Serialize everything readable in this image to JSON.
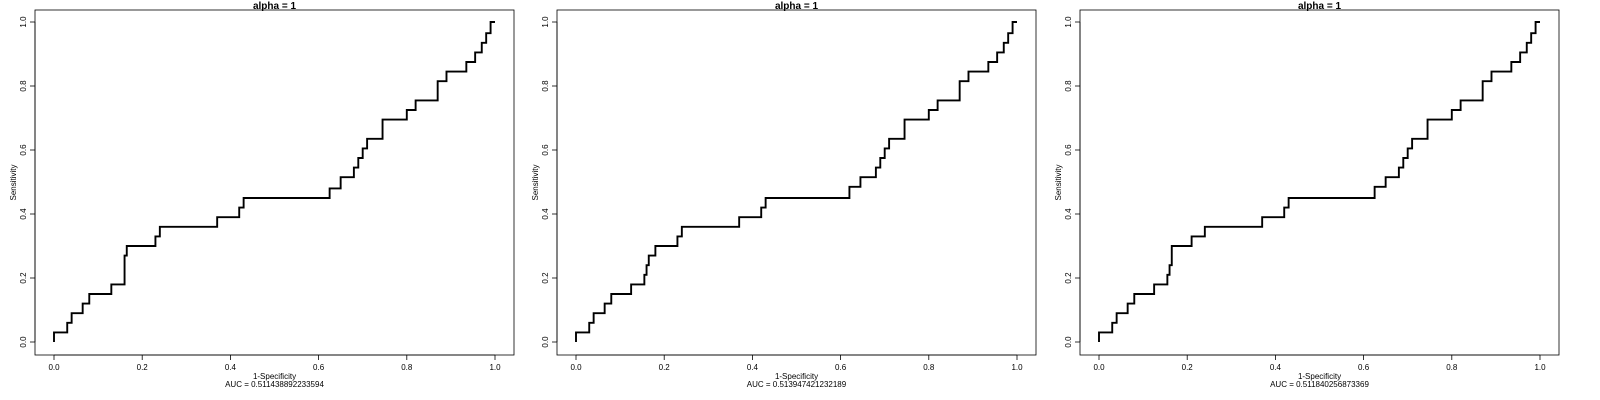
{
  "chart_data": [
    {
      "type": "line",
      "title": "alpha =  1",
      "xlabel": "1-Specificity",
      "ylabel": "Sensitivity",
      "auc_text": "AUC =  0.511438892233594",
      "xlim": [
        0,
        1
      ],
      "ylim": [
        0,
        1
      ],
      "x_ticks": [
        "0.0",
        "0.2",
        "0.4",
        "0.6",
        "0.8",
        "1.0"
      ],
      "y_ticks": [
        "0.0",
        "0.2",
        "0.4",
        "0.6",
        "0.8",
        "1.0"
      ],
      "grid": false,
      "legend": "none",
      "line_color": "#000000",
      "series": [
        {
          "x": [
            0.0,
            0.0,
            0.03,
            0.03,
            0.04,
            0.04,
            0.065,
            0.065,
            0.08,
            0.08,
            0.13,
            0.13,
            0.16,
            0.16,
            0.16,
            0.165,
            0.165,
            0.18,
            0.18,
            0.23,
            0.23,
            0.24,
            0.24,
            0.37,
            0.37,
            0.42,
            0.42,
            0.43,
            0.43,
            0.625,
            0.625,
            0.65,
            0.65,
            0.68,
            0.68,
            0.69,
            0.69,
            0.7,
            0.7,
            0.71,
            0.71,
            0.745,
            0.745,
            0.8,
            0.8,
            0.82,
            0.82,
            0.87,
            0.87,
            0.89,
            0.89,
            0.935,
            0.935,
            0.955,
            0.955,
            0.97,
            0.97,
            0.98,
            0.98,
            0.99,
            0.99,
            1.0
          ],
          "y": [
            0.0,
            0.03,
            0.03,
            0.06,
            0.06,
            0.09,
            0.09,
            0.12,
            0.12,
            0.15,
            0.15,
            0.18,
            0.18,
            0.21,
            0.27,
            0.27,
            0.3,
            0.3,
            0.3,
            0.3,
            0.33,
            0.33,
            0.36,
            0.36,
            0.39,
            0.39,
            0.42,
            0.42,
            0.45,
            0.45,
            0.48,
            0.48,
            0.515,
            0.515,
            0.545,
            0.545,
            0.575,
            0.575,
            0.605,
            0.605,
            0.635,
            0.635,
            0.695,
            0.695,
            0.725,
            0.725,
            0.755,
            0.755,
            0.815,
            0.815,
            0.845,
            0.845,
            0.875,
            0.875,
            0.905,
            0.905,
            0.935,
            0.935,
            0.965,
            0.965,
            1.0,
            1.0
          ]
        }
      ]
    },
    {
      "type": "line",
      "title": "alpha =  1",
      "xlabel": "1-Specificity",
      "ylabel": "Sensitivity",
      "auc_text": "AUC =  0.513947421232189",
      "xlim": [
        0,
        1
      ],
      "ylim": [
        0,
        1
      ],
      "x_ticks": [
        "0.0",
        "0.2",
        "0.4",
        "0.6",
        "0.8",
        "1.0"
      ],
      "y_ticks": [
        "0.0",
        "0.2",
        "0.4",
        "0.6",
        "0.8",
        "1.0"
      ],
      "grid": false,
      "legend": "none",
      "line_color": "#000000",
      "series": [
        {
          "x": [
            0.0,
            0.0,
            0.03,
            0.03,
            0.04,
            0.04,
            0.065,
            0.065,
            0.08,
            0.08,
            0.125,
            0.125,
            0.155,
            0.155,
            0.16,
            0.16,
            0.165,
            0.165,
            0.18,
            0.18,
            0.23,
            0.23,
            0.24,
            0.24,
            0.37,
            0.37,
            0.42,
            0.42,
            0.43,
            0.43,
            0.62,
            0.62,
            0.645,
            0.645,
            0.68,
            0.68,
            0.69,
            0.69,
            0.7,
            0.7,
            0.71,
            0.71,
            0.745,
            0.745,
            0.8,
            0.8,
            0.82,
            0.82,
            0.87,
            0.87,
            0.89,
            0.89,
            0.935,
            0.935,
            0.955,
            0.955,
            0.97,
            0.97,
            0.98,
            0.98,
            0.99,
            0.99,
            1.0
          ],
          "y": [
            0.0,
            0.03,
            0.03,
            0.06,
            0.06,
            0.09,
            0.09,
            0.12,
            0.12,
            0.15,
            0.15,
            0.18,
            0.18,
            0.21,
            0.21,
            0.24,
            0.24,
            0.27,
            0.27,
            0.3,
            0.3,
            0.33,
            0.33,
            0.36,
            0.36,
            0.39,
            0.39,
            0.42,
            0.42,
            0.45,
            0.45,
            0.485,
            0.485,
            0.515,
            0.515,
            0.545,
            0.545,
            0.575,
            0.575,
            0.605,
            0.605,
            0.635,
            0.635,
            0.695,
            0.695,
            0.725,
            0.725,
            0.755,
            0.755,
            0.815,
            0.815,
            0.845,
            0.845,
            0.875,
            0.875,
            0.905,
            0.905,
            0.935,
            0.935,
            0.965,
            0.965,
            1.0,
            1.0
          ]
        }
      ]
    },
    {
      "type": "line",
      "title": "alpha =  1",
      "xlabel": "1-Specificity",
      "ylabel": "Sensitivity",
      "auc_text": "AUC =  0.511840256873369",
      "xlim": [
        0,
        1
      ],
      "ylim": [
        0,
        1
      ],
      "x_ticks": [
        "0.0",
        "0.2",
        "0.4",
        "0.6",
        "0.8",
        "1.0"
      ],
      "y_ticks": [
        "0.0",
        "0.2",
        "0.4",
        "0.6",
        "0.8",
        "1.0"
      ],
      "grid": false,
      "legend": "none",
      "line_color": "#000000",
      "series": [
        {
          "x": [
            0.0,
            0.0,
            0.03,
            0.03,
            0.04,
            0.04,
            0.065,
            0.065,
            0.08,
            0.08,
            0.125,
            0.125,
            0.155,
            0.155,
            0.16,
            0.16,
            0.165,
            0.165,
            0.21,
            0.21,
            0.23,
            0.23,
            0.24,
            0.24,
            0.37,
            0.37,
            0.42,
            0.42,
            0.43,
            0.43,
            0.625,
            0.625,
            0.65,
            0.65,
            0.68,
            0.68,
            0.69,
            0.69,
            0.7,
            0.7,
            0.71,
            0.71,
            0.745,
            0.745,
            0.8,
            0.8,
            0.82,
            0.82,
            0.87,
            0.87,
            0.89,
            0.89,
            0.935,
            0.935,
            0.955,
            0.955,
            0.97,
            0.97,
            0.98,
            0.98,
            0.99,
            0.99,
            1.0
          ],
          "y": [
            0.0,
            0.03,
            0.03,
            0.06,
            0.06,
            0.09,
            0.09,
            0.12,
            0.12,
            0.15,
            0.15,
            0.18,
            0.18,
            0.21,
            0.21,
            0.24,
            0.24,
            0.3,
            0.3,
            0.33,
            0.33,
            0.33,
            0.33,
            0.36,
            0.36,
            0.39,
            0.39,
            0.42,
            0.42,
            0.45,
            0.45,
            0.485,
            0.485,
            0.515,
            0.515,
            0.545,
            0.545,
            0.575,
            0.575,
            0.605,
            0.605,
            0.635,
            0.635,
            0.695,
            0.695,
            0.725,
            0.725,
            0.755,
            0.755,
            0.815,
            0.815,
            0.845,
            0.845,
            0.875,
            0.875,
            0.905,
            0.905,
            0.935,
            0.935,
            0.965,
            0.965,
            1.0,
            1.0
          ]
        }
      ]
    }
  ]
}
